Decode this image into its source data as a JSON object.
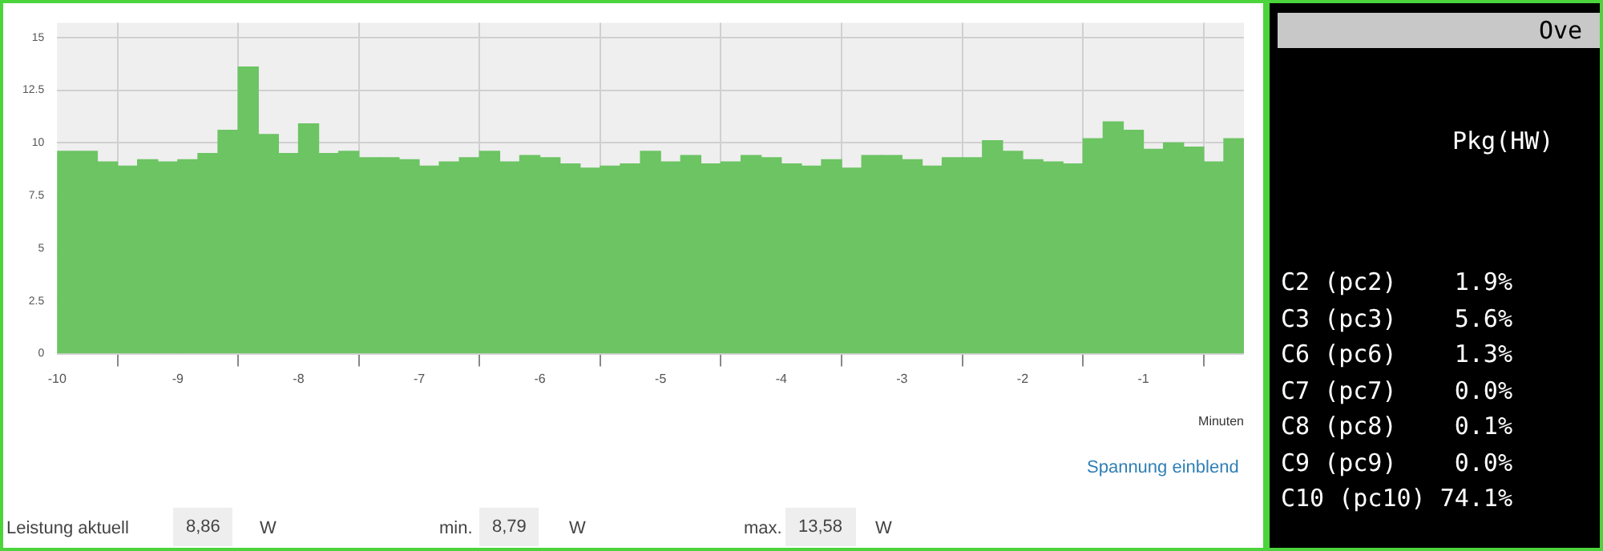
{
  "chart_data": [
    {
      "type": "histogram",
      "xlabel": "Minuten",
      "color": "#6cc463",
      "bins": [
        -10,
        -9.833,
        -9.667,
        -9.5,
        -9.333,
        -9.167,
        -9,
        -8.833,
        -8.667,
        -8.5,
        -8.333,
        -8.167,
        -8,
        -7.833,
        -7.667,
        -7.5,
        -7.333,
        -7.167,
        -7,
        -6.833,
        -6.667,
        -6.5,
        -6.333,
        -6.167,
        -6,
        -5.833,
        -5.667,
        -5.5,
        -5.333,
        -5.167,
        -5,
        -4.833,
        -4.667,
        -4.5,
        -4.333,
        -4.167,
        -4,
        -3.833,
        -3.667,
        -3.5,
        -3.333,
        -3.167,
        -3,
        -2.833,
        -2.667,
        -2.5,
        -2.333,
        -2.167,
        -2,
        -1.833,
        -1.667,
        -1.5,
        -1.333,
        -1.167,
        -1,
        -0.833,
        -0.667,
        -0.5,
        -0.333,
        -0.167
      ],
      "values": [
        9.6,
        9.6,
        9.1,
        8.9,
        9.2,
        9.1,
        9.2,
        9.5,
        10.6,
        13.6,
        10.4,
        9.5,
        10.9,
        9.5,
        9.6,
        9.3,
        9.3,
        9.2,
        8.9,
        9.1,
        9.3,
        9.6,
        9.1,
        9.4,
        9.3,
        9.0,
        8.8,
        8.9,
        9.0,
        9.6,
        9.1,
        9.4,
        9.0,
        9.1,
        9.4,
        9.3,
        9.0,
        8.9,
        9.2,
        8.8,
        9.4,
        9.4,
        9.2,
        8.9,
        9.3,
        9.3,
        10.1,
        9.6,
        9.2,
        9.1,
        9.0,
        10.2,
        11.0,
        10.6,
        9.7,
        10.0,
        9.8,
        9.1,
        10.2
      ],
      "xlim": [
        -10,
        -0.167
      ],
      "xticks": [
        -10,
        -9,
        -8,
        -7,
        -6,
        -5,
        -4,
        -3,
        -2,
        -1
      ],
      "ylim": [
        0,
        15.7
      ],
      "yticks": [
        0,
        2.5,
        5,
        7.5,
        10,
        12.5,
        15
      ],
      "grid": true,
      "legend": false,
      "annotations": [
        "Spannung einblend",
        "Leistung aktuell",
        "8,86",
        "W",
        "min.",
        "8,79",
        "W",
        "max.",
        "13,58",
        "W"
      ]
    },
    {
      "type": "other",
      "annotations": [
        "Ove",
        "Pkg(HW)",
        "C2 (pc2)    1.9%",
        "C3 (pc3)    5.6%",
        "C6 (pc6)    1.3%",
        "C7 (pc7)    0.0%",
        "C8 (pc8)    0.1%",
        "C9 (pc9)    0.0%",
        "C10 (pc10) 74.1%"
      ]
    }
  ]
}
